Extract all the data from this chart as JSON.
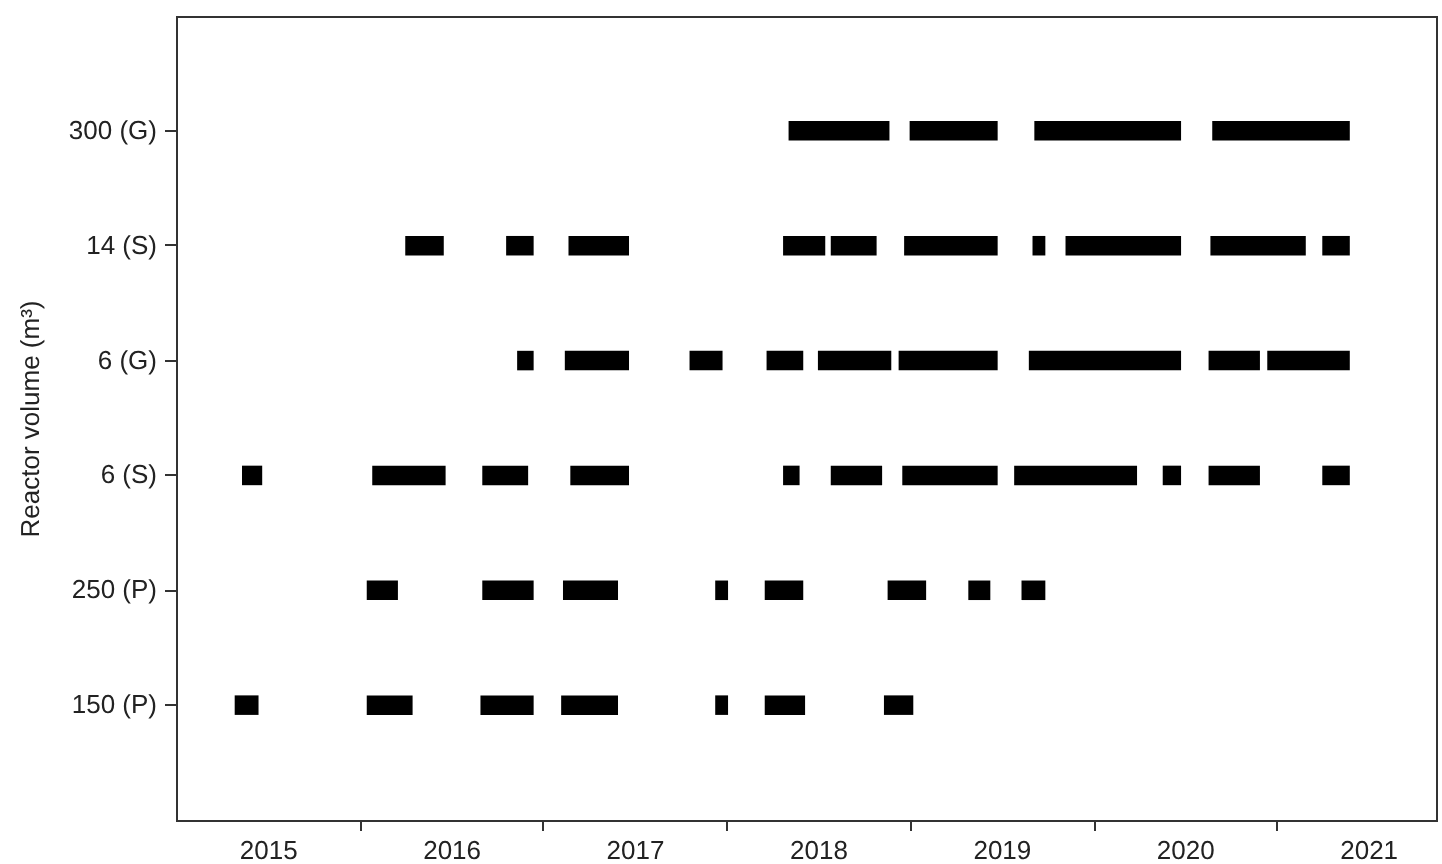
{
  "chart_data": {
    "type": "bar",
    "orientation": "horizontal",
    "ylabel": "Reactor volume (m³)",
    "categories": [
      "300 (G)",
      "14 (S)",
      "6 (G)",
      "6 (S)",
      "250 (P)",
      "150 (P)"
    ],
    "xlim": [
      2015.0,
      2021.87
    ],
    "xticks": [
      {
        "value": 2015.5,
        "label": "2015"
      },
      {
        "value": 2016.5,
        "label": "2016"
      },
      {
        "value": 2017.5,
        "label": "2017"
      },
      {
        "value": 2018.5,
        "label": "2018"
      },
      {
        "value": 2019.5,
        "label": "2019"
      },
      {
        "value": 2020.5,
        "label": "2020"
      },
      {
        "value": 2021.5,
        "label": "2021"
      },
      {
        "value": 2016,
        "label": null
      },
      {
        "value": 2017,
        "label": null
      },
      {
        "value": 2018,
        "label": null
      },
      {
        "value": 2019,
        "label": null
      },
      {
        "value": 2020,
        "label": null
      },
      {
        "value": 2021,
        "label": null
      }
    ],
    "series": [
      {
        "color": "#000000",
        "base": [
          2018.34,
          2016.25,
          2016.86,
          2015.36,
          2016.04,
          2015.32
        ],
        "values": [
          0.55,
          0.21,
          0.09,
          0.11,
          0.17,
          0.13
        ]
      },
      {
        "color": "#000000",
        "base": [
          2019.0,
          2016.8,
          2017.12,
          2016.07,
          2016.67,
          2016.04
        ],
        "values": [
          0.48,
          0.15,
          0.35,
          0.4,
          0.28,
          0.25
        ]
      },
      {
        "color": "#000000",
        "base": [
          2019.68,
          2017.14,
          2017.8,
          2016.67,
          2017.11,
          2016.66
        ],
        "values": [
          0.8,
          0.33,
          0.18,
          0.25,
          0.3,
          0.29
        ]
      },
      {
        "color": "#000000",
        "base": [
          2020.65,
          2018.31,
          2018.22,
          2017.15,
          2017.94,
          2017.1
        ],
        "values": [
          0.75,
          0.23,
          0.2,
          0.32,
          0.07,
          0.31
        ]
      },
      {
        "color": "#000000",
        "base": [
          null,
          2018.57,
          2018.5,
          2018.31,
          2018.21,
          2017.94
        ],
        "values": [
          null,
          0.25,
          0.4,
          0.09,
          0.21,
          0.07
        ]
      },
      {
        "color": "#000000",
        "base": [
          null,
          2018.97,
          2018.94,
          2018.57,
          2018.88,
          2018.21
        ],
        "values": [
          null,
          0.51,
          0.54,
          0.28,
          0.21,
          0.22
        ]
      },
      {
        "color": "#000000",
        "base": [
          null,
          2019.67,
          2019.65,
          2018.96,
          2019.32,
          2018.86
        ],
        "values": [
          null,
          0.07,
          0.83,
          0.52,
          0.12,
          0.16
        ]
      },
      {
        "color": "#000000",
        "base": [
          null,
          2019.85,
          2020.63,
          2019.57,
          2019.61,
          null
        ],
        "values": [
          null,
          0.63,
          0.28,
          0.67,
          0.13,
          null
        ]
      },
      {
        "color": "#000000",
        "base": [
          null,
          2020.64,
          2020.95,
          2020.38,
          null,
          null
        ],
        "values": [
          null,
          0.52,
          0.45,
          0.1,
          null,
          null
        ]
      },
      {
        "color": "#000000",
        "base": [
          null,
          2021.25,
          null,
          2020.63,
          null,
          null
        ],
        "values": [
          null,
          0.15,
          null,
          0.28,
          null,
          null
        ]
      },
      {
        "color": "#000000",
        "base": [
          null,
          null,
          null,
          2021.25,
          null,
          null
        ],
        "values": [
          null,
          null,
          null,
          0.15,
          null,
          null
        ]
      }
    ]
  }
}
